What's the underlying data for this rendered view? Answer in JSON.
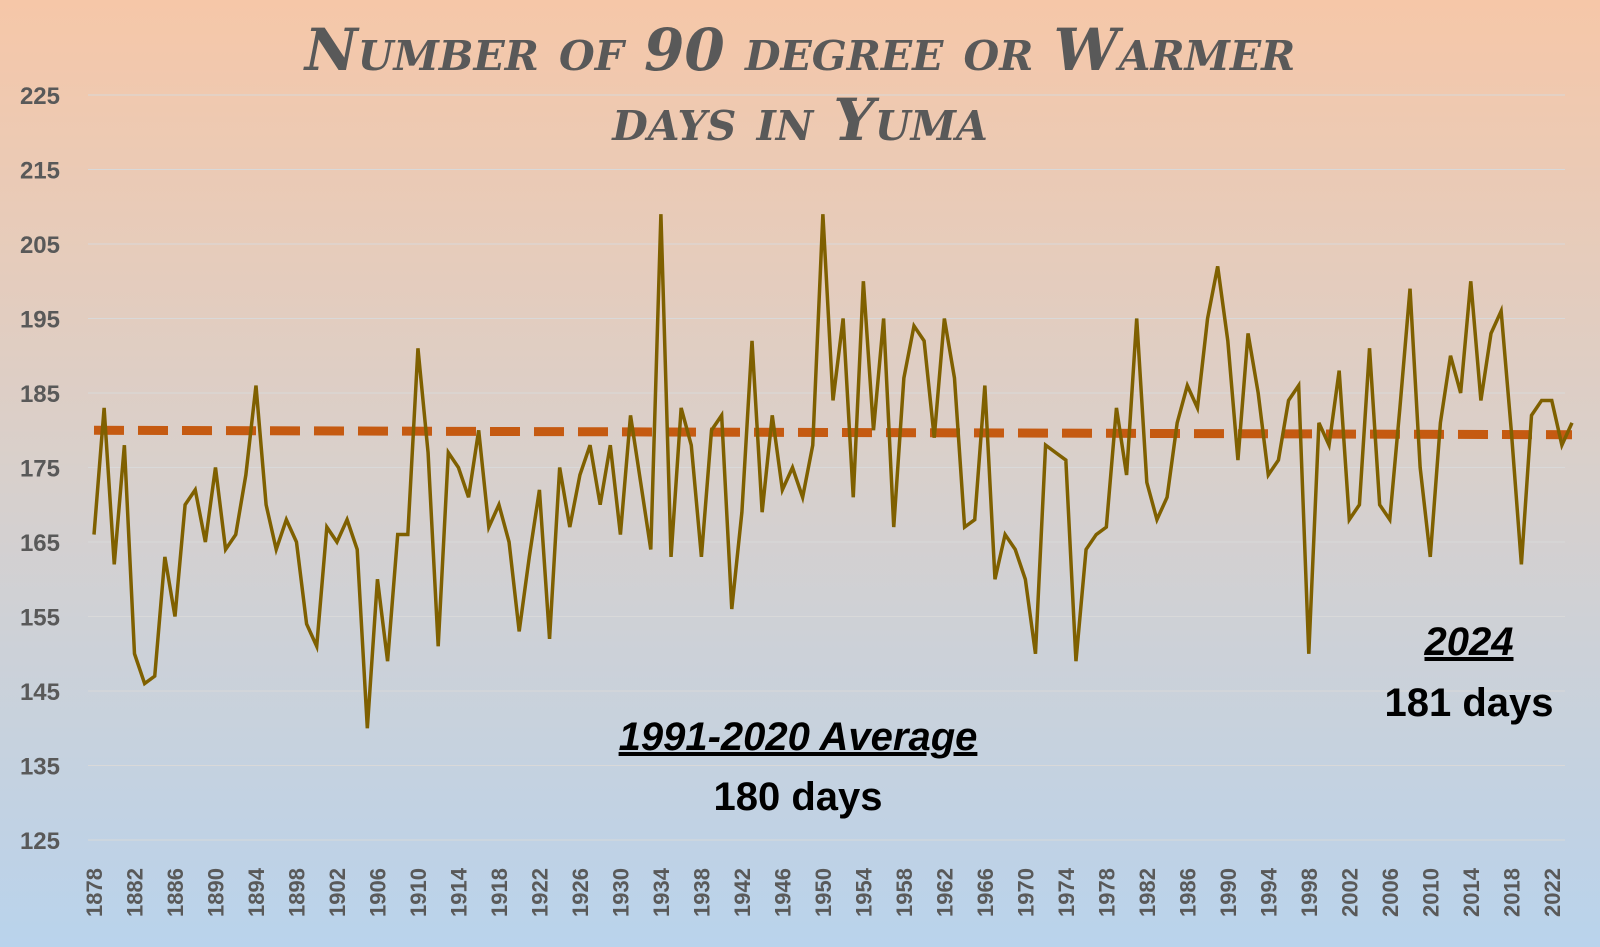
{
  "chart_data": {
    "type": "line",
    "title_line1": "Number of 90 degree or Warmer",
    "title_line2": "days in Yuma",
    "xlabel": "",
    "ylabel": "",
    "ylim": [
      125,
      225
    ],
    "yticks": [
      125,
      135,
      145,
      155,
      165,
      175,
      185,
      195,
      205,
      215,
      225
    ],
    "xtick_labels": [
      "1878",
      "1882",
      "1886",
      "1890",
      "1894",
      "1898",
      "1902",
      "1906",
      "1910",
      "1914",
      "1918",
      "1922",
      "1926",
      "1930",
      "1934",
      "1938",
      "1942",
      "1946",
      "1950",
      "1954",
      "1958",
      "1962",
      "1966",
      "1970",
      "1974",
      "1978",
      "1982",
      "1986",
      "1990",
      "1994",
      "1998",
      "2002",
      "2006",
      "2010",
      "2014",
      "2018",
      "2022"
    ],
    "grid": "horizontal",
    "legend": "none",
    "series": [
      {
        "color": "#7f6000",
        "x": [
          1878,
          1879,
          1880,
          1881,
          1882,
          1883,
          1884,
          1885,
          1886,
          1887,
          1888,
          1889,
          1890,
          1891,
          1892,
          1893,
          1894,
          1895,
          1896,
          1897,
          1898,
          1899,
          1900,
          1901,
          1902,
          1903,
          1904,
          1905,
          1906,
          1907,
          1908,
          1909,
          1910,
          1911,
          1912,
          1913,
          1914,
          1915,
          1916,
          1917,
          1918,
          1919,
          1920,
          1921,
          1922,
          1923,
          1924,
          1925,
          1926,
          1927,
          1928,
          1929,
          1930,
          1931,
          1932,
          1933,
          1934,
          1935,
          1936,
          1937,
          1938,
          1939,
          1940,
          1941,
          1942,
          1943,
          1944,
          1945,
          1946,
          1947,
          1948,
          1949,
          1950,
          1951,
          1952,
          1953,
          1954,
          1955,
          1956,
          1957,
          1958,
          1959,
          1960,
          1961,
          1962,
          1963,
          1964,
          1965,
          1966,
          1967,
          1968,
          1969,
          1970,
          1971,
          1972,
          1973,
          1974,
          1975,
          1976,
          1977,
          1978,
          1979,
          1980,
          1981,
          1982,
          1983,
          1984,
          1985,
          1986,
          1987,
          1988,
          1989,
          1990,
          1991,
          1992,
          1993,
          1994,
          1995,
          1996,
          1997,
          1998,
          1999,
          2000,
          2001,
          2002,
          2003,
          2004,
          2005,
          2006,
          2007,
          2008,
          2009,
          2010,
          2011,
          2012,
          2013,
          2014,
          2015,
          2016,
          2017,
          2018,
          2019,
          2020,
          2021,
          2022,
          2023,
          2024
        ],
        "values": [
          166,
          183,
          162,
          178,
          150,
          146,
          147,
          163,
          155,
          170,
          172,
          165,
          175,
          164,
          166,
          174,
          186,
          170,
          164,
          168,
          165,
          154,
          151,
          167,
          165,
          168,
          164,
          140,
          160,
          149,
          166,
          166,
          191,
          177,
          151,
          177,
          175,
          171,
          180,
          167,
          170,
          165,
          153,
          163,
          172,
          152,
          175,
          167,
          174,
          178,
          170,
          178,
          166,
          182,
          173,
          164,
          209,
          163,
          183,
          178,
          163,
          180,
          182,
          156,
          169,
          192,
          169,
          182,
          172,
          175,
          171,
          178,
          209,
          184,
          195,
          171,
          200,
          180,
          195,
          167,
          187,
          194,
          192,
          179,
          195,
          187,
          167,
          168,
          186,
          160,
          166,
          164,
          160,
          150,
          178,
          177,
          176,
          149,
          164,
          166,
          167,
          183,
          174,
          195,
          173,
          168,
          171,
          181,
          186,
          183,
          195,
          202,
          192,
          176,
          193,
          185,
          174,
          176,
          184,
          186,
          150,
          181,
          178,
          188,
          168,
          170,
          191,
          170,
          168,
          183,
          199,
          175,
          163,
          181,
          190,
          185,
          200,
          184,
          193,
          196,
          180,
          162,
          182,
          184,
          184,
          178,
          181
        ]
      },
      {
        "color": "#c55a11",
        "style": "dashed",
        "x": [
          1878,
          2024
        ],
        "values": [
          180,
          179.4
        ]
      }
    ],
    "annotations": [
      {
        "label": "1991-2020 Average",
        "value": "180 days"
      },
      {
        "label": "2024",
        "value": "181 days"
      }
    ]
  }
}
